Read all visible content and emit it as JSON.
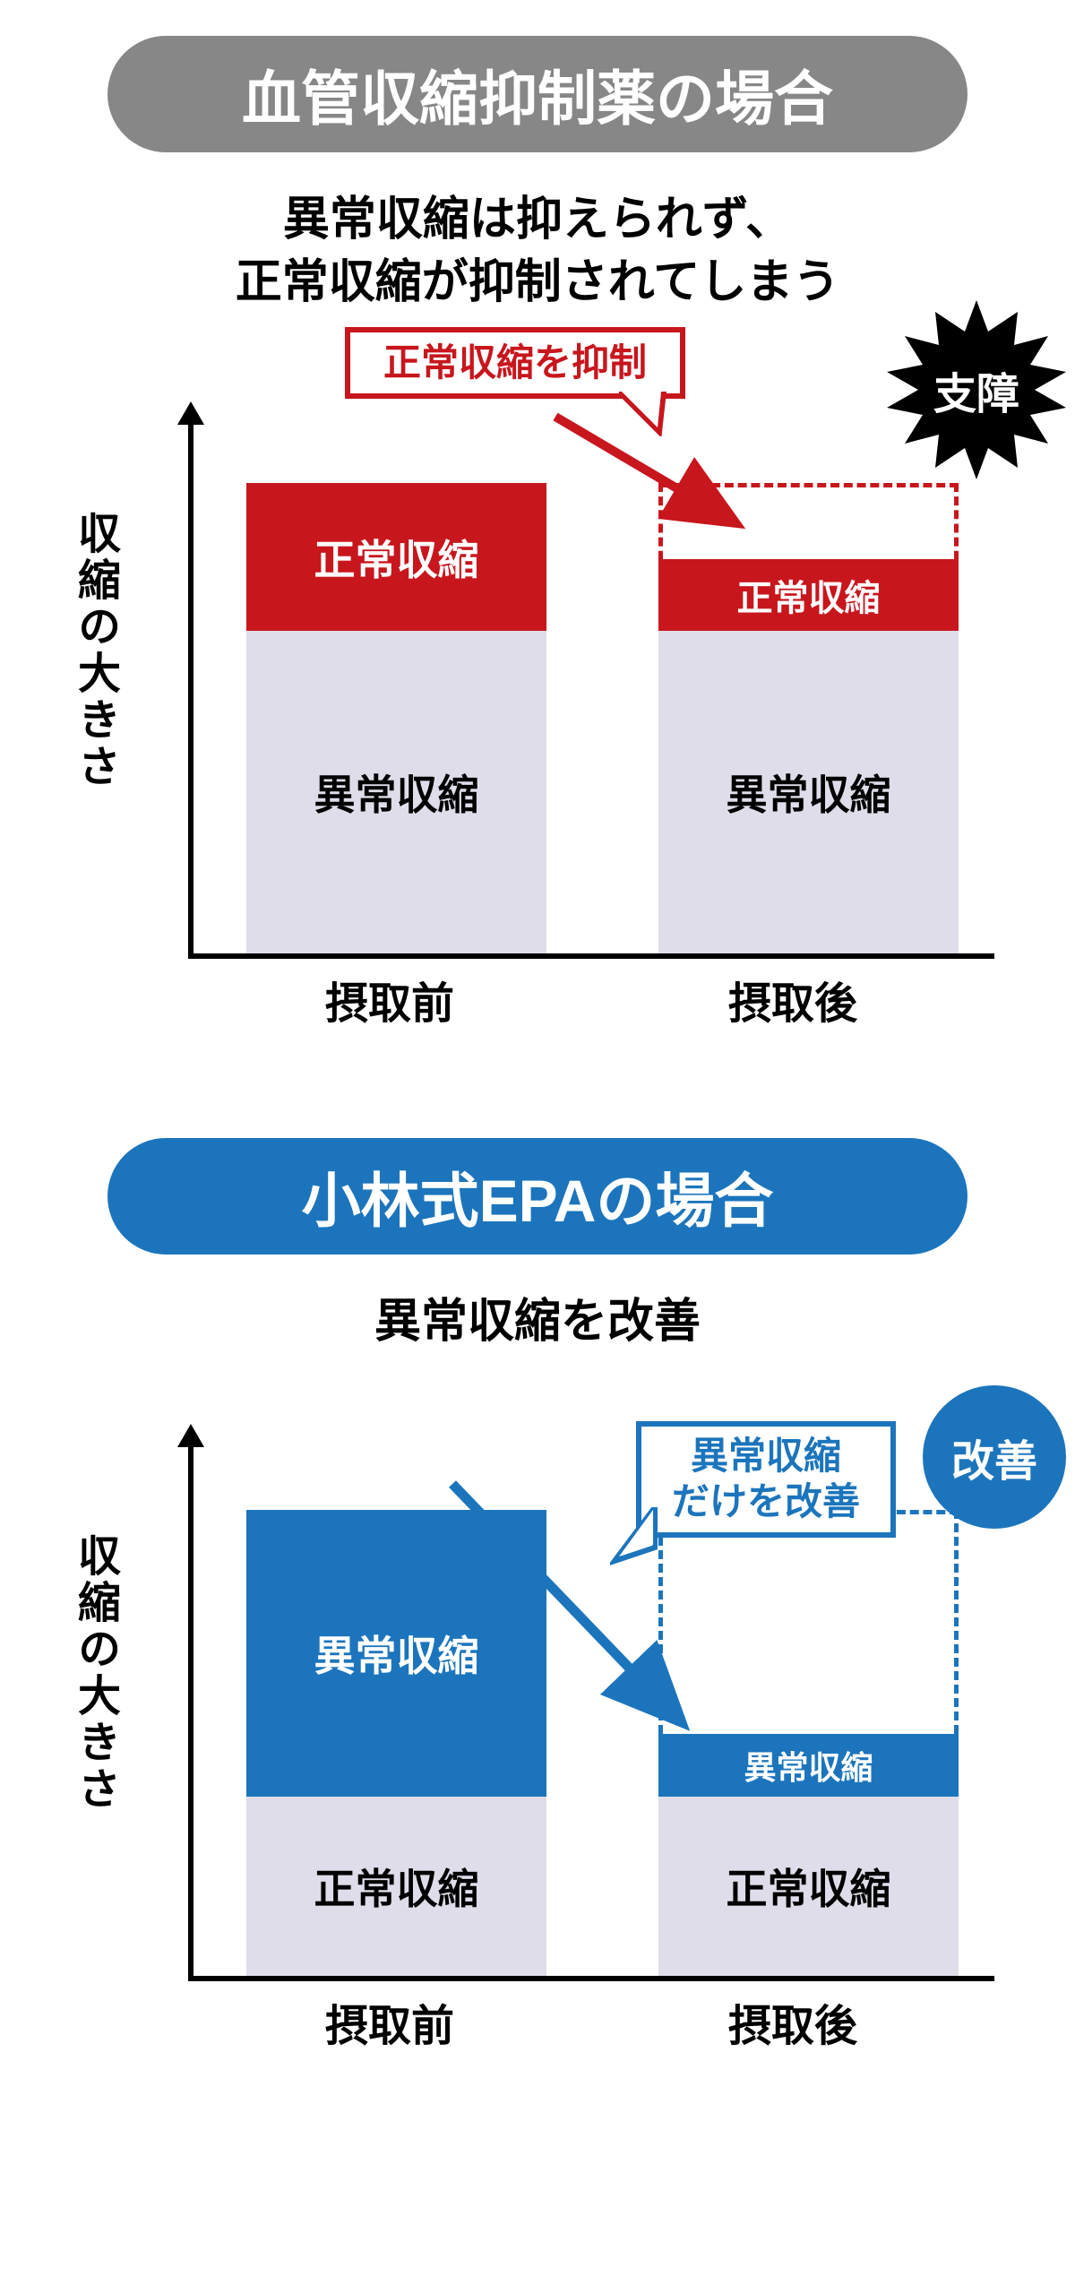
{
  "colors": {
    "gray_pill": "#878787",
    "red": "#c8161d",
    "light_lavender": "#dedde9",
    "black": "#000000",
    "white": "#ffffff",
    "blue_pill": "#1c75bc",
    "blue_fill": "#1c75bc",
    "blue_dashed": "#1c75bc"
  },
  "section1": {
    "title": "血管収縮抑制薬の場合",
    "title_bg": "#878787",
    "subtitle_line1": "異常収縮は抑えられず、",
    "subtitle_line2": "正常収縮が抑制されてしまう",
    "y_label": "収縮の大きさ",
    "x_label_before": "摂取前",
    "x_label_after": "摂取後",
    "callout": "正常収縮を抑制",
    "callout_border": "#c8161d",
    "callout_text_color": "#c8161d",
    "badge": "支障",
    "badge_bg": "#000000",
    "badge_text_color": "#ffffff",
    "bar_before": {
      "top_label": "正常収縮",
      "top_height": 165,
      "top_bg": "#c8161d",
      "top_text": "#ffffff",
      "top_fontsize": 46,
      "bottom_label": "異常収縮",
      "bottom_height": 360,
      "bottom_bg": "#dedde9",
      "bottom_text": "#000000",
      "bottom_fontsize": 46
    },
    "bar_after": {
      "dashed_height": 525,
      "dashed_color": "#c8161d",
      "top_label": "正常収縮",
      "top_height": 80,
      "top_bg": "#c8161d",
      "top_text": "#ffffff",
      "top_fontsize": 40,
      "bottom_label": "異常収縮",
      "bottom_height": 360,
      "bottom_bg": "#dedde9",
      "bottom_text": "#000000",
      "bottom_fontsize": 46
    }
  },
  "section2": {
    "title": "小林式EPAの場合",
    "title_bg": "#1c75bc",
    "subtitle": "異常収縮を改善",
    "y_label": "収縮の大きさ",
    "x_label_before": "摂取前",
    "x_label_after": "摂取後",
    "callout_line1": "異常収縮",
    "callout_line2": "だけを改善",
    "callout_border": "#1c75bc",
    "callout_text_color": "#1c75bc",
    "badge": "改善",
    "badge_bg": "#1c75bc",
    "bar_before": {
      "top_label": "異常収縮",
      "top_height": 320,
      "top_bg": "#1c75bc",
      "top_text": "#ffffff",
      "top_fontsize": 46,
      "bottom_label": "正常収縮",
      "bottom_height": 200,
      "bottom_bg": "#dedde9",
      "bottom_text": "#000000",
      "bottom_fontsize": 46
    },
    "bar_after": {
      "dashed_height": 520,
      "dashed_color": "#1c75bc",
      "top_label": "異常収縮",
      "top_height": 70,
      "top_bg": "#1c75bc",
      "top_text": "#ffffff",
      "top_fontsize": 36,
      "bottom_label": "正常収縮",
      "bottom_height": 200,
      "bottom_bg": "#dedde9",
      "bottom_text": "#000000",
      "bottom_fontsize": 46
    }
  }
}
